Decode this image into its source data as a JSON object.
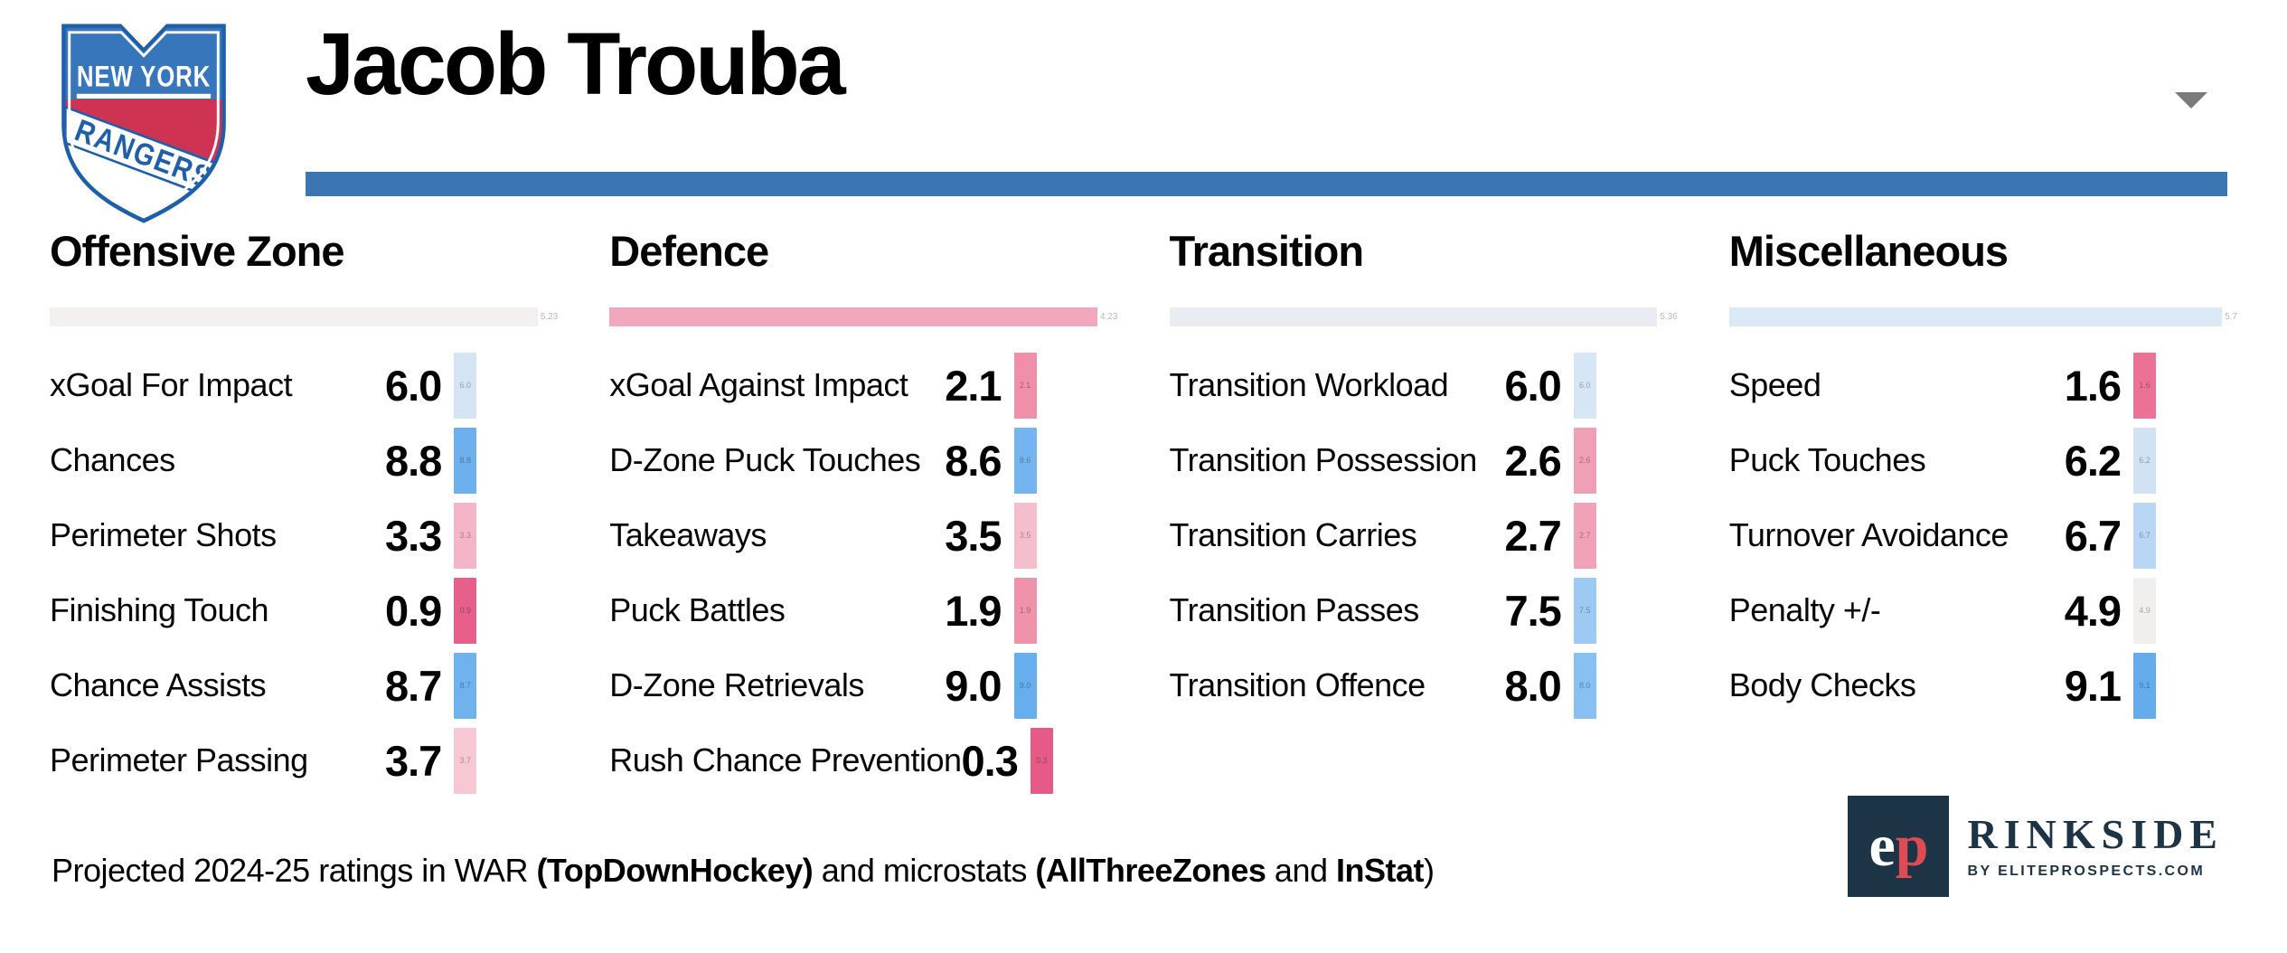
{
  "header": {
    "player_name": "Jacob Trouba",
    "accent_bar_color": "#3b76b2",
    "team_logo": {
      "team": "New York Rangers",
      "primary_text": "NEW YORK",
      "secondary_text": "RANGERS",
      "shield_blue": "#3776bb",
      "border_blue": "#1f5ea8",
      "band_red": "#cf3352"
    }
  },
  "categories": [
    {
      "title": "Offensive Zone",
      "bar_color": "#f4f0f0",
      "bar_value_label": "5.23",
      "stats": [
        {
          "label": "xGoal For Impact",
          "value": "6.0",
          "chip_color": "#d4e4f4"
        },
        {
          "label": "Chances",
          "value": "8.8",
          "chip_color": "#6db0ed"
        },
        {
          "label": "Perimeter Shots",
          "value": "3.3",
          "chip_color": "#f3b6c8"
        },
        {
          "label": "Finishing Touch",
          "value": "0.9",
          "chip_color": "#e75f8b"
        },
        {
          "label": "Chance Assists",
          "value": "8.7",
          "chip_color": "#70b2ee"
        },
        {
          "label": "Perimeter Passing",
          "value": "3.7",
          "chip_color": "#f6c8d4"
        }
      ]
    },
    {
      "title": "Defence",
      "bar_color": "#f1a8bd",
      "bar_value_label": "4.23",
      "stats": [
        {
          "label": "xGoal Against Impact",
          "value": "2.1",
          "chip_color": "#ef8fa9"
        },
        {
          "label": "D-Zone Puck Touches",
          "value": "8.6",
          "chip_color": "#75b5ef"
        },
        {
          "label": "Takeaways",
          "value": "3.5",
          "chip_color": "#f4bfcd"
        },
        {
          "label": "Puck Battles",
          "value": "1.9",
          "chip_color": "#ef92ac"
        },
        {
          "label": "D-Zone Retrievals",
          "value": "9.0",
          "chip_color": "#67aeec"
        },
        {
          "label": "Rush Chance Prevention",
          "value": "0.3",
          "chip_color": "#e65a87"
        }
      ]
    },
    {
      "title": "Transition",
      "bar_color": "#e9edf1",
      "bar_value_label": "5.36",
      "stats": [
        {
          "label": "Transition Workload",
          "value": "6.0",
          "chip_color": "#d7e6f5"
        },
        {
          "label": "Transition Possession",
          "value": "2.6",
          "chip_color": "#f0a0b6"
        },
        {
          "label": "Transition Carries",
          "value": "2.7",
          "chip_color": "#f0a2b8"
        },
        {
          "label": "Transition Passes",
          "value": "7.5",
          "chip_color": "#9ccaf2"
        },
        {
          "label": "Transition Offence",
          "value": "8.0",
          "chip_color": "#87c0f1"
        }
      ]
    },
    {
      "title": "Miscellaneous",
      "bar_color": "#dbe8f5",
      "bar_value_label": "5.7",
      "stats": [
        {
          "label": "Speed",
          "value": "1.6",
          "chip_color": "#eb7296"
        },
        {
          "label": "Puck Touches",
          "value": "6.2",
          "chip_color": "#d0e2f4"
        },
        {
          "label": "Turnover Avoidance",
          "value": "6.7",
          "chip_color": "#b9d7f3"
        },
        {
          "label": "Penalty +/-",
          "value": "4.9",
          "chip_color": "#f0efed"
        },
        {
          "label": "Body Checks",
          "value": "9.1",
          "chip_color": "#64acec"
        }
      ]
    }
  ],
  "footer": {
    "note_segments": [
      {
        "text": "Projected 2024-25 ratings in WAR ",
        "bold": false
      },
      {
        "text": "(TopDownHockey)",
        "bold": true
      },
      {
        "text": " and microstats ",
        "bold": false
      },
      {
        "text": "(AllThreeZones",
        "bold": true
      },
      {
        "text": " and ",
        "bold": false
      },
      {
        "text": "InStat",
        "bold": true
      },
      {
        "text": ")",
        "bold": false
      }
    ],
    "brand": {
      "monogram_e": "e",
      "monogram_p": "p",
      "monogram_bg": "#1d3346",
      "monogram_e_color": "#ffffff",
      "monogram_p_color": "#dd4b53",
      "name": "RINKSIDE",
      "tagline": "BY ELITEPROSPECTS.COM",
      "text_color": "#1d3346"
    }
  },
  "chart_data": {
    "type": "table",
    "title": "Jacob Trouba",
    "value_scale": [
      0,
      10
    ],
    "color_encoding": "diverging scale: red/pink = low rating, blue = high rating",
    "groups": [
      {
        "category": "Offensive Zone",
        "average_label": "5.23",
        "stats": [
          {
            "label": "xGoal For Impact",
            "value": 6.0
          },
          {
            "label": "Chances",
            "value": 8.8
          },
          {
            "label": "Perimeter Shots",
            "value": 3.3
          },
          {
            "label": "Finishing Touch",
            "value": 0.9
          },
          {
            "label": "Chance Assists",
            "value": 8.7
          },
          {
            "label": "Perimeter Passing",
            "value": 3.7
          }
        ]
      },
      {
        "category": "Defence",
        "average_label": "4.23",
        "stats": [
          {
            "label": "xGoal Against Impact",
            "value": 2.1
          },
          {
            "label": "D-Zone Puck Touches",
            "value": 8.6
          },
          {
            "label": "Takeaways",
            "value": 3.5
          },
          {
            "label": "Puck Battles",
            "value": 1.9
          },
          {
            "label": "D-Zone Retrievals",
            "value": 9.0
          },
          {
            "label": "Rush Chance Prevention",
            "value": 0.3
          }
        ]
      },
      {
        "category": "Transition",
        "average_label": "5.36",
        "stats": [
          {
            "label": "Transition Workload",
            "value": 6.0
          },
          {
            "label": "Transition Possession",
            "value": 2.6
          },
          {
            "label": "Transition Carries",
            "value": 2.7
          },
          {
            "label": "Transition Passes",
            "value": 7.5
          },
          {
            "label": "Transition Offence",
            "value": 8.0
          }
        ]
      },
      {
        "category": "Miscellaneous",
        "average_label": "5.7",
        "stats": [
          {
            "label": "Speed",
            "value": 1.6
          },
          {
            "label": "Puck Touches",
            "value": 6.2
          },
          {
            "label": "Turnover Avoidance",
            "value": 6.7
          },
          {
            "label": "Penalty +/-",
            "value": 4.9
          },
          {
            "label": "Body Checks",
            "value": 9.1
          }
        ]
      }
    ],
    "note": "Projected 2024-25 ratings in WAR (TopDownHockey) and microstats (AllThreeZones and InStat)"
  }
}
